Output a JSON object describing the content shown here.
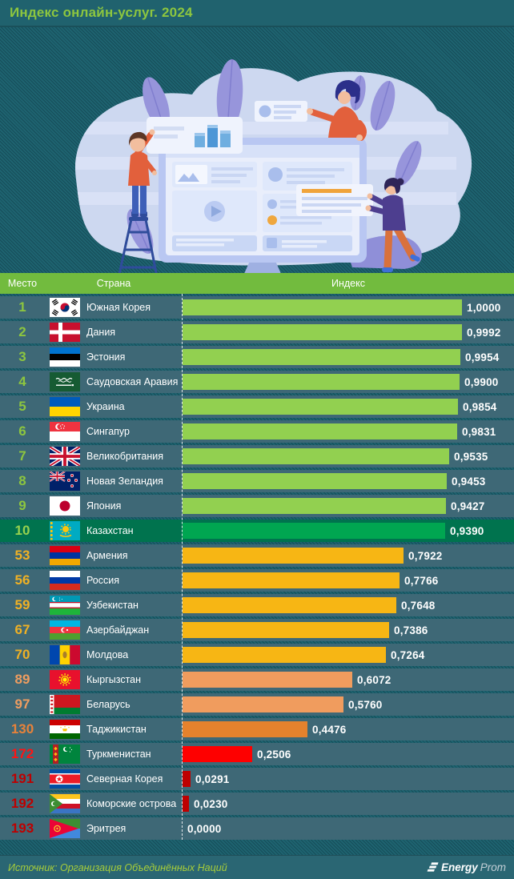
{
  "title": "Индекс онлайн-услуг. 2024",
  "table": {
    "columns": [
      "Место",
      "Страна",
      "Индекс"
    ],
    "rows": [
      {
        "rank": "1",
        "country": "Южная Корея",
        "value": "1,0000",
        "num": 1.0,
        "flag": "kr",
        "tier": "top"
      },
      {
        "rank": "2",
        "country": "Дания",
        "value": "0,9992",
        "num": 0.9992,
        "flag": "dk",
        "tier": "top"
      },
      {
        "rank": "3",
        "country": "Эстония",
        "value": "0,9954",
        "num": 0.9954,
        "flag": "ee",
        "tier": "top"
      },
      {
        "rank": "4",
        "country": "Саудовская Аравия",
        "value": "0,9900",
        "num": 0.99,
        "flag": "sa",
        "tier": "top"
      },
      {
        "rank": "5",
        "country": "Украина",
        "value": "0,9854",
        "num": 0.9854,
        "flag": "ua",
        "tier": "top"
      },
      {
        "rank": "6",
        "country": "Сингапур",
        "value": "0,9831",
        "num": 0.9831,
        "flag": "sg",
        "tier": "top"
      },
      {
        "rank": "7",
        "country": "Великобритания",
        "value": "0,9535",
        "num": 0.9535,
        "flag": "gb",
        "tier": "top"
      },
      {
        "rank": "8",
        "country": "Новая Зеландия",
        "value": "0,9453",
        "num": 0.9453,
        "flag": "nz",
        "tier": "top"
      },
      {
        "rank": "9",
        "country": "Япония",
        "value": "0,9427",
        "num": 0.9427,
        "flag": "jp",
        "tier": "top"
      },
      {
        "rank": "10",
        "country": "Казахстан",
        "value": "0,9390",
        "num": 0.939,
        "flag": "kz",
        "tier": "highlight"
      },
      {
        "rank": "53",
        "country": "Армения",
        "value": "0,7922",
        "num": 0.7922,
        "flag": "am",
        "tier": "mid"
      },
      {
        "rank": "56",
        "country": "Россия",
        "value": "0,7766",
        "num": 0.7766,
        "flag": "ru",
        "tier": "mid"
      },
      {
        "rank": "59",
        "country": "Узбекистан",
        "value": "0,7648",
        "num": 0.7648,
        "flag": "uz",
        "tier": "mid"
      },
      {
        "rank": "67",
        "country": "Азербайджан",
        "value": "0,7386",
        "num": 0.7386,
        "flag": "az",
        "tier": "mid"
      },
      {
        "rank": "70",
        "country": "Молдова",
        "value": "0,7264",
        "num": 0.7264,
        "flag": "md",
        "tier": "mid"
      },
      {
        "rank": "89",
        "country": "Кыргызстан",
        "value": "0,6072",
        "num": 0.6072,
        "flag": "kg",
        "tier": "low"
      },
      {
        "rank": "97",
        "country": "Беларусь",
        "value": "0,5760",
        "num": 0.576,
        "flag": "by",
        "tier": "low"
      },
      {
        "rank": "130",
        "country": "Таджикистан",
        "value": "0,4476",
        "num": 0.4476,
        "flag": "tj",
        "tier": "low2"
      },
      {
        "rank": "172",
        "country": "Туркменистан",
        "value": "0,2506",
        "num": 0.2506,
        "flag": "tm",
        "tier": "red"
      },
      {
        "rank": "191",
        "country": "Северная Корея",
        "value": "0,0291",
        "num": 0.0291,
        "flag": "kp",
        "tier": "bottom"
      },
      {
        "rank": "192",
        "country": "Коморские острова",
        "value": "0,0230",
        "num": 0.023,
        "flag": "km",
        "tier": "bottom"
      },
      {
        "rank": "193",
        "country": "Эритрея",
        "value": "0,0000",
        "num": 0.0,
        "flag": "er",
        "tier": "bottom"
      }
    ]
  },
  "footer": {
    "source": "Источник: Организация Объединённых Наций",
    "brand_bold": "Energy",
    "brand_light": "Prom"
  },
  "colors": {
    "accent_green": "#8dc63f",
    "header_green": "#72bb3e",
    "row_bg": "#3e6876",
    "highlight_row_bg": "#00734e",
    "bar_top": "#92d050",
    "bar_highlight": "#00a651",
    "bar_mid": "#f7b614",
    "bar_low": "#f09c5e",
    "bar_low2": "#e5822d",
    "bar_red": "#fe0000",
    "bar_dark_red": "#be0000",
    "background_teal": "#1e6370"
  },
  "chart_data": {
    "type": "bar",
    "orientation": "horizontal",
    "title": "Индекс онлайн-услуг. 2024",
    "categories": [
      "Южная Корея",
      "Дания",
      "Эстония",
      "Саудовская Аравия",
      "Украина",
      "Сингапур",
      "Великобритания",
      "Новая Зеландия",
      "Япония",
      "Казахстан",
      "Армения",
      "Россия",
      "Узбекистан",
      "Азербайджан",
      "Молдова",
      "Кыргызстан",
      "Беларусь",
      "Таджикистан",
      "Туркменистан",
      "Северная Корея",
      "Коморские острова",
      "Эритрея"
    ],
    "ranks": [
      1,
      2,
      3,
      4,
      5,
      6,
      7,
      8,
      9,
      10,
      53,
      56,
      59,
      67,
      70,
      89,
      97,
      130,
      172,
      191,
      192,
      193
    ],
    "values": [
      1.0,
      0.9992,
      0.9954,
      0.99,
      0.9854,
      0.9831,
      0.9535,
      0.9453,
      0.9427,
      0.939,
      0.7922,
      0.7766,
      0.7648,
      0.7386,
      0.7264,
      0.6072,
      0.576,
      0.4476,
      0.2506,
      0.0291,
      0.023,
      0.0
    ],
    "value_labels": [
      "1,0000",
      "0,9992",
      "0,9954",
      "0,9900",
      "0,9854",
      "0,9831",
      "0,9535",
      "0,9453",
      "0,9427",
      "0,9390",
      "0,7922",
      "0,7766",
      "0,7648",
      "0,7386",
      "0,7264",
      "0,6072",
      "0,5760",
      "0,4476",
      "0,2506",
      "0,0291",
      "0,0230",
      "0,0000"
    ],
    "xlim": [
      0,
      1
    ],
    "highlight_category": "Казахстан",
    "columns": [
      "Место",
      "Страна",
      "Индекс"
    ],
    "source": "Источник: Организация Объединённых Наций"
  }
}
